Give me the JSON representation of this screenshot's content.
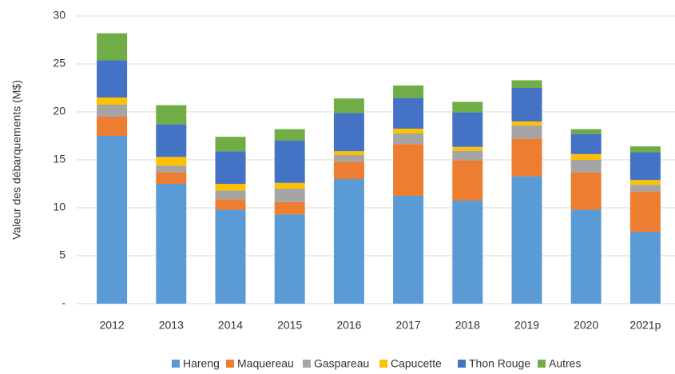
{
  "chart_data": {
    "type": "stacked_bar",
    "y_label": "Valeur des débarquements (M$)",
    "categories": [
      "2012",
      "2013",
      "2014",
      "2015",
      "2016",
      "2017",
      "2018",
      "2019",
      "2020",
      "2021p"
    ],
    "series": [
      {
        "name": "Hareng",
        "color": "#5B9BD5",
        "values": [
          17.5,
          12.5,
          9.8,
          9.3,
          13.0,
          11.25,
          10.75,
          13.3,
          9.8,
          7.5
        ]
      },
      {
        "name": "Maquereau",
        "color": "#ED7D31",
        "values": [
          2.0,
          1.2,
          1.1,
          1.3,
          1.8,
          5.4,
          4.2,
          3.9,
          3.9,
          4.2
        ]
      },
      {
        "name": "Gaspareau",
        "color": "#A5A5A5",
        "values": [
          1.25,
          0.7,
          0.9,
          1.4,
          0.7,
          1.1,
          1.0,
          1.4,
          1.3,
          0.7
        ]
      },
      {
        "name": "Capucette",
        "color": "#FFC000",
        "values": [
          0.75,
          0.9,
          0.7,
          0.6,
          0.4,
          0.5,
          0.4,
          0.4,
          0.6,
          0.5
        ]
      },
      {
        "name": "Thon Rouge",
        "color": "#4472C4",
        "values": [
          3.9,
          3.4,
          3.4,
          4.4,
          4.0,
          3.2,
          3.6,
          3.5,
          2.1,
          2.9
        ]
      },
      {
        "name": "Autres",
        "color": "#70AD47",
        "values": [
          2.8,
          2.0,
          1.5,
          1.2,
          1.5,
          1.3,
          1.1,
          0.8,
          0.5,
          0.6
        ]
      }
    ],
    "ylim": [
      0,
      30
    ],
    "yticks": [
      {
        "value": 0,
        "label": "-"
      },
      5,
      10,
      15,
      20,
      25,
      30
    ],
    "grid": true,
    "legend": "bottom"
  }
}
